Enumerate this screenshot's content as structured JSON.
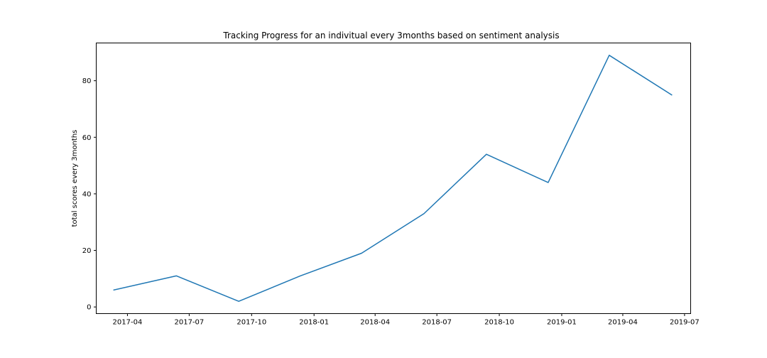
{
  "chart_data": {
    "type": "line",
    "title": "Tracking Progress for an indivitual every 3months based on sentiment analysis",
    "xlabel": "",
    "ylabel": "total scores every 3months",
    "x": [
      "2017-03-12",
      "2017-06-12",
      "2017-09-12",
      "2017-12-12",
      "2018-03-12",
      "2018-06-12",
      "2018-09-12",
      "2018-12-12",
      "2019-03-12",
      "2019-06-12"
    ],
    "series": [
      {
        "values": [
          6,
          11,
          2,
          11,
          19,
          33,
          54,
          44,
          89,
          75
        ],
        "color": "#1f77b4"
      }
    ],
    "xlim": [
      "2017-02-14",
      "2019-07-10"
    ],
    "ylim": [
      -2.35,
      93.35
    ],
    "x_ticks": [
      {
        "date": "2017-04-01",
        "label": "2017-04"
      },
      {
        "date": "2017-07-01",
        "label": "2017-07"
      },
      {
        "date": "2017-10-01",
        "label": "2017-10"
      },
      {
        "date": "2018-01-01",
        "label": "2018-01"
      },
      {
        "date": "2018-04-01",
        "label": "2018-04"
      },
      {
        "date": "2018-07-01",
        "label": "2018-07"
      },
      {
        "date": "2018-10-01",
        "label": "2018-10"
      },
      {
        "date": "2019-01-01",
        "label": "2019-01"
      },
      {
        "date": "2019-04-01",
        "label": "2019-04"
      },
      {
        "date": "2019-07-01",
        "label": "2019-07"
      }
    ],
    "y_ticks": [
      {
        "value": 0,
        "label": "0"
      },
      {
        "value": 20,
        "label": "20"
      },
      {
        "value": 40,
        "label": "40"
      },
      {
        "value": 60,
        "label": "60"
      },
      {
        "value": 80,
        "label": "80"
      }
    ],
    "grid": false,
    "legend": "none"
  }
}
